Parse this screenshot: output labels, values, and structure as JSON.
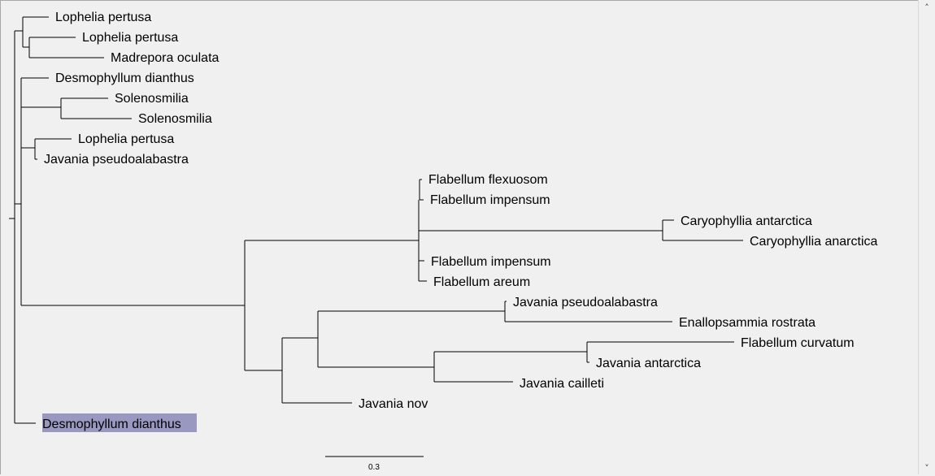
{
  "tree": {
    "leaves": [
      {
        "id": "l1",
        "label": "Lophelia pertusa"
      },
      {
        "id": "l2",
        "label": "Lophelia pertusa"
      },
      {
        "id": "l3",
        "label": "Madrepora oculata"
      },
      {
        "id": "l4",
        "label": "Desmophyllum dianthus"
      },
      {
        "id": "l5",
        "label": "Solenosmilia"
      },
      {
        "id": "l6",
        "label": "Solenosmilia"
      },
      {
        "id": "l7",
        "label": "Lophelia pertusa"
      },
      {
        "id": "l8",
        "label": "Javania pseudoalabastra"
      },
      {
        "id": "l9",
        "label": "Flabellum flexuosom"
      },
      {
        "id": "l10",
        "label": "Flabellum impensum"
      },
      {
        "id": "l11",
        "label": "Caryophyllia antarctica"
      },
      {
        "id": "l12",
        "label": "Caryophyllia anarctica"
      },
      {
        "id": "l13",
        "label": "Flabellum impensum"
      },
      {
        "id": "l14",
        "label": "Flabellum areum"
      },
      {
        "id": "l15",
        "label": "Javania pseudoalabastra"
      },
      {
        "id": "l16",
        "label": "Enallopsammia rostrata"
      },
      {
        "id": "l17",
        "label": "Flabellum curvatum"
      },
      {
        "id": "l18",
        "label": "Javania antarctica"
      },
      {
        "id": "l19",
        "label": "Javania cailleti"
      },
      {
        "id": "l20",
        "label": "Javania nov"
      },
      {
        "id": "l21",
        "label": "Desmophyllum dianthus",
        "selected": true
      }
    ],
    "selected_color": "#9898c0",
    "selected_text_color": "#1a1a5a"
  },
  "scale_bar": {
    "label": "0.3"
  },
  "scrollbar": {
    "up_icon": "arrow-up-icon",
    "down_icon": "arrow-down-icon"
  }
}
